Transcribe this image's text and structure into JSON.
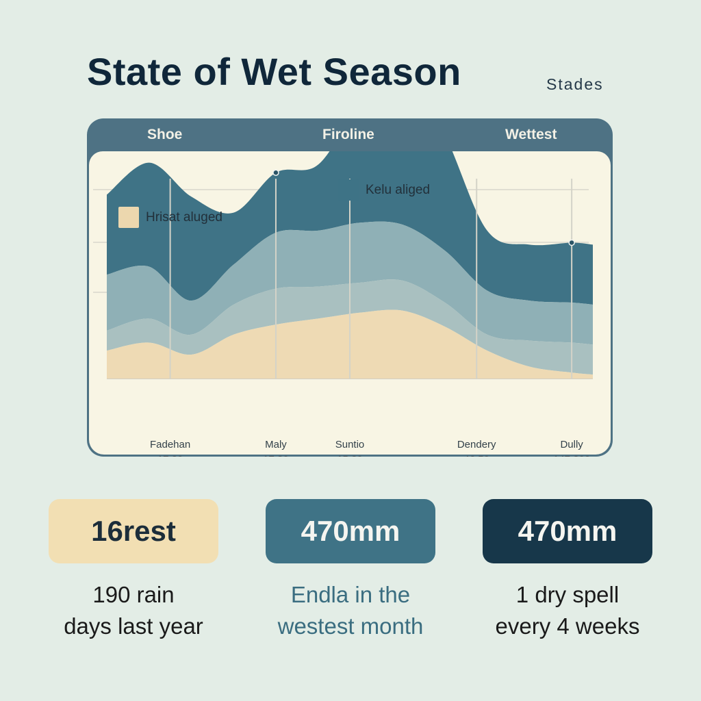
{
  "page": {
    "title": "State of Wet Season",
    "title_side": "Stades",
    "background": "#e3ede6"
  },
  "card": {
    "header_tabs": [
      "Shoe",
      "Firoline",
      "Wettest"
    ],
    "header_color": "#4e7284",
    "body_color": "#f8f5e4"
  },
  "chart_data": {
    "type": "area",
    "title": "",
    "legend": [
      {
        "label": "Kelu aliged",
        "color": "#3e7386"
      },
      {
        "label": "Hrisat aluged",
        "color": "#ecd7ae"
      }
    ],
    "legend_placement": "top",
    "grid": true,
    "x_ticks": [
      {
        "name": "Fadehan",
        "value": "17:20"
      },
      {
        "name": "Maly",
        "value": "17:20"
      },
      {
        "name": "Suntio",
        "value": "15.20"
      },
      {
        "name": "Dendery",
        "value": "46:50"
      },
      {
        "name": "Dully",
        "value": "147.200"
      }
    ],
    "x": [
      0,
      0.4,
      0.8,
      1.2,
      1.6,
      2.0,
      2.4,
      2.8,
      3.2,
      3.6,
      4.0,
      4.4,
      4.6
    ],
    "series": [
      {
        "color": "#3f7386",
        "values": [
          40,
          52,
          52,
          26,
          30,
          33,
          60,
          82,
          58,
          30,
          28,
          30,
          30
        ]
      },
      {
        "color": "#8fb0b6",
        "values": [
          28,
          26,
          17,
          20,
          28,
          28,
          30,
          28,
          26,
          22,
          20,
          20,
          20
        ]
      },
      {
        "color": "#a9c0c0",
        "values": [
          10,
          12,
          10,
          15,
          18,
          16,
          15,
          15,
          12,
          8,
          13,
          15,
          15
        ]
      },
      {
        "color": "#ecd7ae",
        "values": [
          14,
          18,
          12,
          22,
          27,
          30,
          33,
          34,
          26,
          14,
          6,
          3,
          2
        ]
      }
    ],
    "ylim": [
      0,
      100
    ]
  },
  "stats": [
    {
      "value": "16rest",
      "caption_1": "190 rain",
      "caption_2": "days last year",
      "bg": "#f2dfb3",
      "text_color": "#1c2d3a",
      "caption_color": "#1a1a1a"
    },
    {
      "value": "470mm",
      "caption_1": "Endla in the",
      "caption_2": "westest month",
      "bg": "#3f7386",
      "text_color": "#f5f5f0",
      "caption_color": "#3a6d80"
    },
    {
      "value": "470mm",
      "caption_1": "1 dry spell",
      "caption_2": "every 4 weeks",
      "bg": "#17374a",
      "text_color": "#f5f5f0",
      "caption_color": "#1a1a1a"
    }
  ]
}
